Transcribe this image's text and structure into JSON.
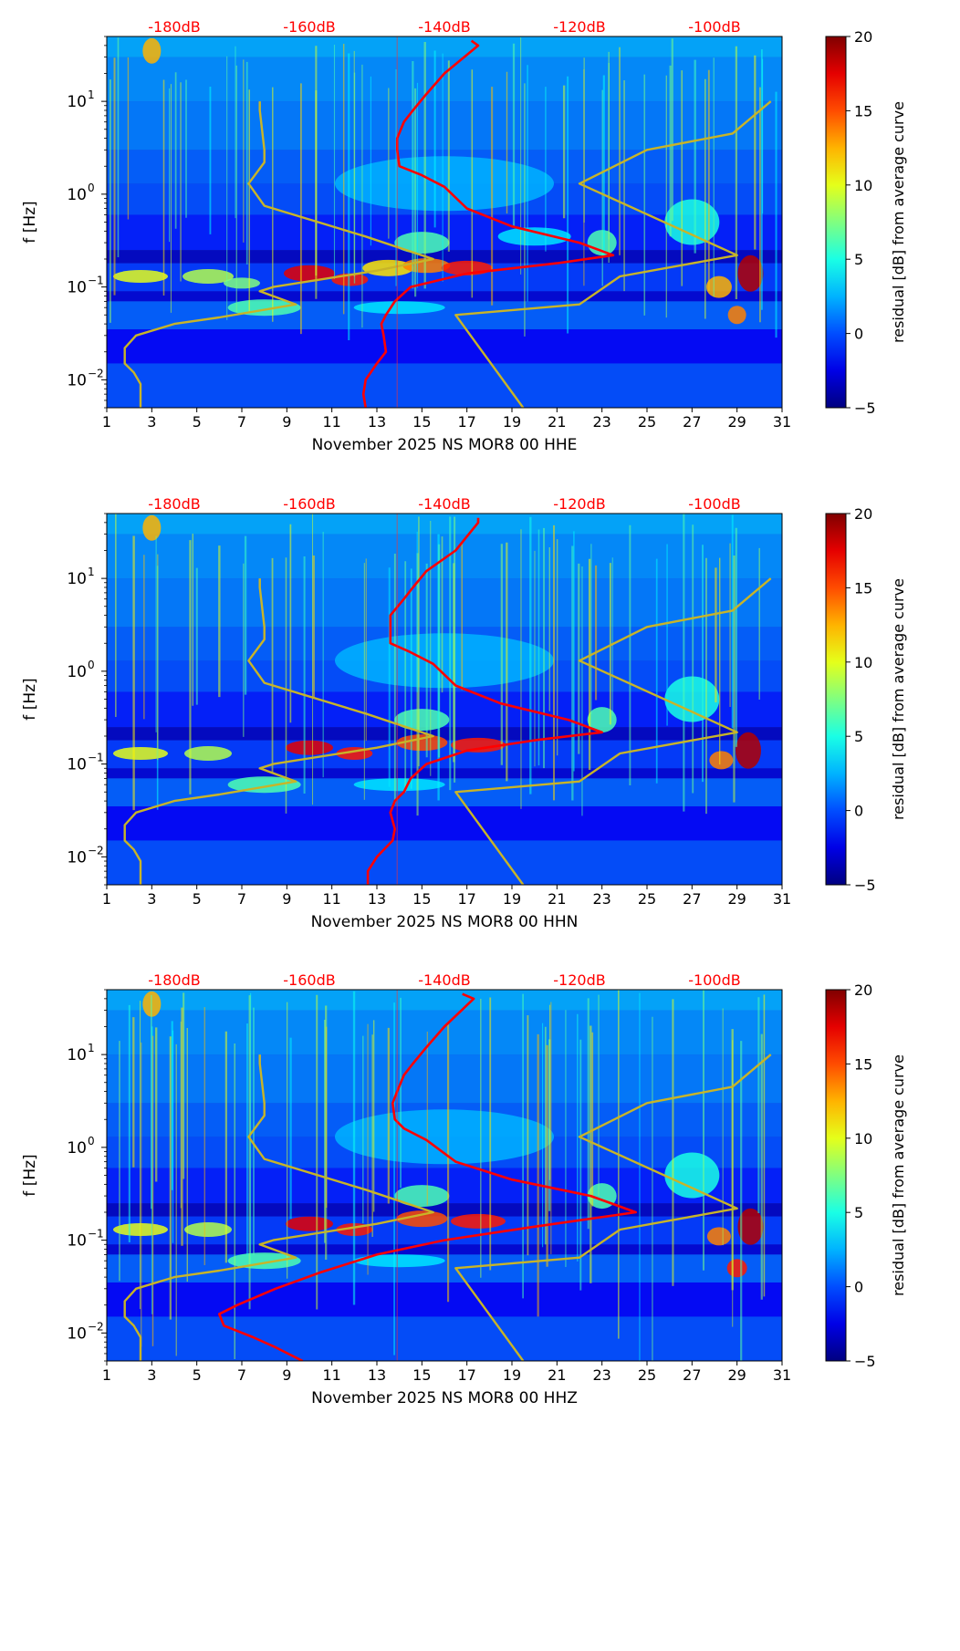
{
  "chart_data": [
    {
      "type": "heatmap",
      "xlabel": "November 2025 NS MOR8 00 HHE",
      "ylabel": "f [Hz]",
      "x_ticks": [
        "1",
        "3",
        "5",
        "7",
        "9",
        "11",
        "13",
        "15",
        "17",
        "19",
        "21",
        "23",
        "25",
        "27",
        "29",
        "31"
      ],
      "x_range": [
        1,
        31
      ],
      "y_scale": "log",
      "y_range": [
        0.005,
        50
      ],
      "y_ticks": [
        {
          "base": "10",
          "exp": "1",
          "value": 10
        },
        {
          "base": "10",
          "exp": "0",
          "value": 1
        },
        {
          "base": "10",
          "exp": "−1",
          "value": 0.1
        },
        {
          "base": "10",
          "exp": "−2",
          "value": 0.01
        }
      ],
      "top_axis_ticks": [
        "-180dB",
        "-160dB",
        "-140dB",
        "-120dB",
        "-100dB"
      ],
      "top_axis_color": "#ff0000",
      "colorbar": {
        "label": "residual [dB] from average curve",
        "min": -5,
        "max": 20,
        "ticks": [
          "20",
          "15",
          "10",
          "5",
          "0",
          "−5"
        ],
        "colormap": "jet"
      },
      "series": [
        {
          "color": "#ff0000",
          "points": [
            [
              12.5,
              0.005
            ],
            [
              12.4,
              0.007
            ],
            [
              12.5,
              0.01
            ],
            [
              13,
              0.015
            ],
            [
              13.4,
              0.02
            ],
            [
              13.3,
              0.03
            ],
            [
              13.2,
              0.04
            ],
            [
              13.4,
              0.05
            ],
            [
              13.8,
              0.07
            ],
            [
              14.5,
              0.1
            ],
            [
              17,
              0.14
            ],
            [
              21,
              0.18
            ],
            [
              23.5,
              0.22
            ],
            [
              22,
              0.3
            ],
            [
              19,
              0.45
            ],
            [
              17,
              0.7
            ],
            [
              16,
              1.2
            ],
            [
              15,
              1.6
            ],
            [
              14,
              2
            ],
            [
              13.9,
              3
            ],
            [
              13.9,
              4
            ],
            [
              14.2,
              6
            ],
            [
              14.6,
              8
            ],
            [
              15.2,
              12
            ],
            [
              16,
              20
            ],
            [
              17.5,
              40
            ],
            [
              17.2,
              45
            ]
          ]
        },
        {
          "color": "#c8b428",
          "points": [
            [
              2.5,
              0.005
            ],
            [
              2.5,
              0.009
            ],
            [
              2.2,
              0.012
            ],
            [
              1.8,
              0.015
            ],
            [
              1.8,
              0.022
            ],
            [
              2.3,
              0.03
            ],
            [
              4,
              0.04
            ],
            [
              6,
              0.047
            ],
            [
              9.4,
              0.065
            ],
            [
              7.8,
              0.09
            ],
            [
              8.4,
              0.1
            ],
            [
              13,
              0.15
            ],
            [
              15.5,
              0.2
            ],
            [
              12.5,
              0.35
            ],
            [
              8,
              0.75
            ],
            [
              7.3,
              1.3
            ],
            [
              8,
              2.2
            ],
            [
              8,
              3
            ],
            [
              7.8,
              8
            ],
            [
              7.8,
              10
            ]
          ]
        },
        {
          "color": "#c8b428",
          "points": [
            [
              19.5,
              0.005
            ],
            [
              16.5,
              0.05
            ],
            [
              22,
              0.065
            ],
            [
              23.8,
              0.13
            ],
            [
              29,
              0.22
            ],
            [
              22,
              1.3
            ],
            [
              25,
              3
            ],
            [
              28.8,
              4.5
            ],
            [
              30.5,
              10
            ]
          ]
        }
      ]
    },
    {
      "type": "heatmap",
      "xlabel": "November 2025 NS MOR8 00 HHN",
      "ylabel": "f [Hz]",
      "x_ticks": [
        "1",
        "3",
        "5",
        "7",
        "9",
        "11",
        "13",
        "15",
        "17",
        "19",
        "21",
        "23",
        "25",
        "27",
        "29",
        "31"
      ],
      "x_range": [
        1,
        31
      ],
      "y_scale": "log",
      "y_range": [
        0.005,
        50
      ],
      "y_ticks": [
        {
          "base": "10",
          "exp": "1",
          "value": 10
        },
        {
          "base": "10",
          "exp": "0",
          "value": 1
        },
        {
          "base": "10",
          "exp": "−1",
          "value": 0.1
        },
        {
          "base": "10",
          "exp": "−2",
          "value": 0.01
        }
      ],
      "top_axis_ticks": [
        "-180dB",
        "-160dB",
        "-140dB",
        "-120dB",
        "-100dB"
      ],
      "top_axis_color": "#ff0000",
      "colorbar": {
        "label": "residual [dB] from average curve",
        "min": -5,
        "max": 20,
        "ticks": [
          "20",
          "15",
          "10",
          "5",
          "0",
          "−5"
        ],
        "colormap": "jet"
      },
      "series": [
        {
          "color": "#ff0000",
          "points": [
            [
              12.6,
              0.005
            ],
            [
              12.6,
              0.007
            ],
            [
              13,
              0.01
            ],
            [
              13.7,
              0.015
            ],
            [
              13.8,
              0.02
            ],
            [
              13.6,
              0.03
            ],
            [
              13.8,
              0.04
            ],
            [
              14.2,
              0.05
            ],
            [
              14.5,
              0.07
            ],
            [
              15.2,
              0.1
            ],
            [
              17,
              0.14
            ],
            [
              20,
              0.18
            ],
            [
              23,
              0.22
            ],
            [
              21.5,
              0.3
            ],
            [
              18.5,
              0.45
            ],
            [
              16.5,
              0.7
            ],
            [
              15.5,
              1.2
            ],
            [
              14.5,
              1.6
            ],
            [
              13.6,
              2
            ],
            [
              13.6,
              3
            ],
            [
              13.6,
              4
            ],
            [
              14.2,
              6
            ],
            [
              14.6,
              8
            ],
            [
              15.2,
              12
            ],
            [
              16.5,
              20
            ],
            [
              17.5,
              40
            ],
            [
              17.5,
              45
            ]
          ]
        },
        {
          "color": "#c8b428",
          "points": [
            [
              2.5,
              0.005
            ],
            [
              2.5,
              0.009
            ],
            [
              2.2,
              0.012
            ],
            [
              1.8,
              0.015
            ],
            [
              1.8,
              0.022
            ],
            [
              2.3,
              0.03
            ],
            [
              4,
              0.04
            ],
            [
              6,
              0.047
            ],
            [
              9.4,
              0.065
            ],
            [
              7.8,
              0.09
            ],
            [
              8.4,
              0.1
            ],
            [
              13,
              0.15
            ],
            [
              15.5,
              0.2
            ],
            [
              12.5,
              0.35
            ],
            [
              8,
              0.75
            ],
            [
              7.3,
              1.3
            ],
            [
              8,
              2.2
            ],
            [
              8,
              3
            ],
            [
              7.8,
              8
            ],
            [
              7.8,
              10
            ]
          ]
        },
        {
          "color": "#c8b428",
          "points": [
            [
              19.5,
              0.005
            ],
            [
              16.5,
              0.05
            ],
            [
              22,
              0.065
            ],
            [
              23.8,
              0.13
            ],
            [
              29,
              0.22
            ],
            [
              22,
              1.3
            ],
            [
              25,
              3
            ],
            [
              28.8,
              4.5
            ],
            [
              30.5,
              10
            ]
          ]
        }
      ]
    },
    {
      "type": "heatmap",
      "xlabel": "November 2025 NS MOR8 00 HHZ",
      "ylabel": "f [Hz]",
      "x_ticks": [
        "1",
        "3",
        "5",
        "7",
        "9",
        "11",
        "13",
        "15",
        "17",
        "19",
        "21",
        "23",
        "25",
        "27",
        "29",
        "31"
      ],
      "x_range": [
        1,
        31
      ],
      "y_scale": "log",
      "y_range": [
        0.005,
        50
      ],
      "y_ticks": [
        {
          "base": "10",
          "exp": "1",
          "value": 10
        },
        {
          "base": "10",
          "exp": "0",
          "value": 1
        },
        {
          "base": "10",
          "exp": "−1",
          "value": 0.1
        },
        {
          "base": "10",
          "exp": "−2",
          "value": 0.01
        }
      ],
      "top_axis_ticks": [
        "-180dB",
        "-160dB",
        "-140dB",
        "-120dB",
        "-100dB"
      ],
      "top_axis_color": "#ff0000",
      "colorbar": {
        "label": "residual [dB] from average curve",
        "min": -5,
        "max": 20,
        "ticks": [
          "20",
          "15",
          "10",
          "5",
          "0",
          "−5"
        ],
        "colormap": "jet"
      },
      "series": [
        {
          "color": "#ff0000",
          "points": [
            [
              9.7,
              0.005
            ],
            [
              8.5,
              0.007
            ],
            [
              7.5,
              0.009
            ],
            [
              6.2,
              0.012
            ],
            [
              6,
              0.016
            ],
            [
              6.8,
              0.02
            ],
            [
              8.5,
              0.03
            ],
            [
              10.5,
              0.045
            ],
            [
              13,
              0.07
            ],
            [
              16,
              0.1
            ],
            [
              20,
              0.14
            ],
            [
              24.5,
              0.2
            ],
            [
              22.5,
              0.3
            ],
            [
              19,
              0.45
            ],
            [
              16.5,
              0.7
            ],
            [
              15.2,
              1.2
            ],
            [
              14.2,
              1.6
            ],
            [
              13.8,
              2
            ],
            [
              13.7,
              3
            ],
            [
              13.9,
              4
            ],
            [
              14.2,
              6
            ],
            [
              14.6,
              8
            ],
            [
              15.2,
              12
            ],
            [
              16,
              20
            ],
            [
              17.3,
              40
            ],
            [
              16.8,
              45
            ]
          ]
        },
        {
          "color": "#c8b428",
          "points": [
            [
              2.5,
              0.005
            ],
            [
              2.5,
              0.009
            ],
            [
              2.2,
              0.012
            ],
            [
              1.8,
              0.015
            ],
            [
              1.8,
              0.022
            ],
            [
              2.3,
              0.03
            ],
            [
              4,
              0.04
            ],
            [
              6,
              0.047
            ],
            [
              9.4,
              0.065
            ],
            [
              7.8,
              0.09
            ],
            [
              8.4,
              0.1
            ],
            [
              13,
              0.15
            ],
            [
              15.5,
              0.2
            ],
            [
              12.5,
              0.35
            ],
            [
              8,
              0.75
            ],
            [
              7.3,
              1.3
            ],
            [
              8,
              2.2
            ],
            [
              8,
              3
            ],
            [
              7.8,
              8
            ],
            [
              7.8,
              10
            ]
          ]
        },
        {
          "color": "#c8b428",
          "points": [
            [
              19.5,
              0.005
            ],
            [
              16.5,
              0.05
            ],
            [
              22,
              0.065
            ],
            [
              23.8,
              0.13
            ],
            [
              29,
              0.22
            ],
            [
              22,
              1.3
            ],
            [
              25,
              3
            ],
            [
              28.8,
              4.5
            ],
            [
              30.5,
              10
            ]
          ]
        }
      ]
    }
  ]
}
